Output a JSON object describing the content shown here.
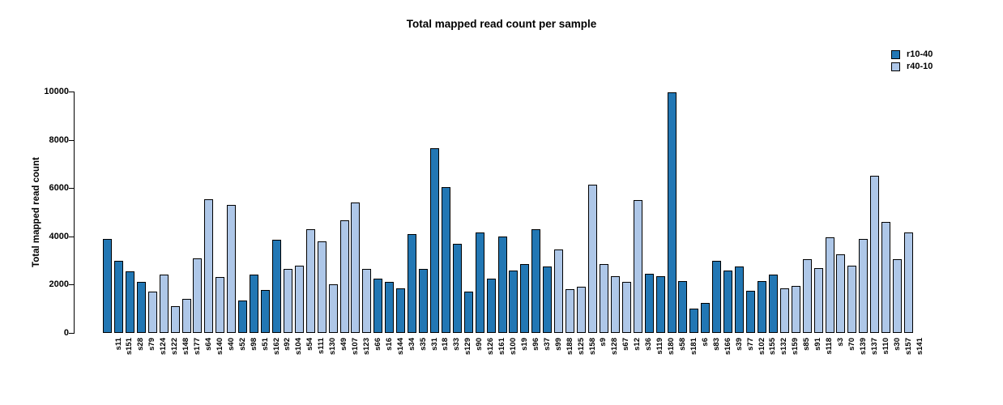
{
  "title": "Total mapped read count per sample",
  "legend": {
    "items": [
      {
        "label": "r10-40",
        "color": "#2277B4"
      },
      {
        "label": "r40-10",
        "color": "#AEC7E8"
      }
    ]
  },
  "chart_data": {
    "type": "bar",
    "title": "Total mapped read count per sample",
    "xlabel": "",
    "ylabel": "Total mapped read count",
    "ylim": [
      0,
      10000
    ],
    "yticks": [
      0,
      2000,
      4000,
      6000,
      8000,
      10000
    ],
    "grid": false,
    "legend_position": "top-right",
    "bar_border_color": "#000000",
    "series_colors": {
      "r10-40": "#2277B4",
      "r40-10": "#AEC7E8"
    },
    "samples": [
      {
        "label": "s11",
        "value": 3900,
        "series": "r10-40"
      },
      {
        "label": "s151",
        "value": 3000,
        "series": "r10-40"
      },
      {
        "label": "s28",
        "value": 2550,
        "series": "r10-40"
      },
      {
        "label": "s79",
        "value": 2100,
        "series": "r10-40"
      },
      {
        "label": "s124",
        "value": 1700,
        "series": "r40-10"
      },
      {
        "label": "s122",
        "value": 2400,
        "series": "r40-10"
      },
      {
        "label": "s148",
        "value": 1100,
        "series": "r40-10"
      },
      {
        "label": "s177",
        "value": 1400,
        "series": "r40-10"
      },
      {
        "label": "s64",
        "value": 3100,
        "series": "r40-10"
      },
      {
        "label": "s140",
        "value": 5550,
        "series": "r40-10"
      },
      {
        "label": "s40",
        "value": 2330,
        "series": "r40-10"
      },
      {
        "label": "s52",
        "value": 5300,
        "series": "r40-10"
      },
      {
        "label": "s98",
        "value": 1350,
        "series": "r10-40"
      },
      {
        "label": "s51",
        "value": 2430,
        "series": "r10-40"
      },
      {
        "label": "s162",
        "value": 1780,
        "series": "r10-40"
      },
      {
        "label": "s92",
        "value": 3850,
        "series": "r10-40"
      },
      {
        "label": "s104",
        "value": 2650,
        "series": "r40-10"
      },
      {
        "label": "s54",
        "value": 2800,
        "series": "r40-10"
      },
      {
        "label": "s111",
        "value": 4300,
        "series": "r40-10"
      },
      {
        "label": "s130",
        "value": 3800,
        "series": "r40-10"
      },
      {
        "label": "s49",
        "value": 2000,
        "series": "r40-10"
      },
      {
        "label": "s107",
        "value": 4650,
        "series": "r40-10"
      },
      {
        "label": "s123",
        "value": 5400,
        "series": "r40-10"
      },
      {
        "label": "s66",
        "value": 2650,
        "series": "r40-10"
      },
      {
        "label": "s16",
        "value": 2250,
        "series": "r10-40"
      },
      {
        "label": "s144",
        "value": 2100,
        "series": "r10-40"
      },
      {
        "label": "s34",
        "value": 1850,
        "series": "r10-40"
      },
      {
        "label": "s35",
        "value": 4100,
        "series": "r10-40"
      },
      {
        "label": "s31",
        "value": 2650,
        "series": "r10-40"
      },
      {
        "label": "s18",
        "value": 7650,
        "series": "r10-40"
      },
      {
        "label": "s33",
        "value": 6050,
        "series": "r10-40"
      },
      {
        "label": "s129",
        "value": 3700,
        "series": "r10-40"
      },
      {
        "label": "s90",
        "value": 1700,
        "series": "r10-40"
      },
      {
        "label": "s126",
        "value": 4150,
        "series": "r10-40"
      },
      {
        "label": "s161",
        "value": 2250,
        "series": "r10-40"
      },
      {
        "label": "s100",
        "value": 4000,
        "series": "r10-40"
      },
      {
        "label": "s19",
        "value": 2600,
        "series": "r10-40"
      },
      {
        "label": "s96",
        "value": 2850,
        "series": "r10-40"
      },
      {
        "label": "s37",
        "value": 4300,
        "series": "r10-40"
      },
      {
        "label": "s99",
        "value": 2750,
        "series": "r10-40"
      },
      {
        "label": "s188",
        "value": 3450,
        "series": "r40-10"
      },
      {
        "label": "s125",
        "value": 1800,
        "series": "r40-10"
      },
      {
        "label": "s158",
        "value": 1900,
        "series": "r40-10"
      },
      {
        "label": "s9",
        "value": 6150,
        "series": "r40-10"
      },
      {
        "label": "s128",
        "value": 2850,
        "series": "r40-10"
      },
      {
        "label": "s67",
        "value": 2350,
        "series": "r40-10"
      },
      {
        "label": "s12",
        "value": 2100,
        "series": "r40-10"
      },
      {
        "label": "s36",
        "value": 5500,
        "series": "r40-10"
      },
      {
        "label": "s119",
        "value": 2450,
        "series": "r10-40"
      },
      {
        "label": "s180",
        "value": 2350,
        "series": "r10-40"
      },
      {
        "label": "s58",
        "value": 9950,
        "series": "r10-40"
      },
      {
        "label": "s181",
        "value": 2150,
        "series": "r10-40"
      },
      {
        "label": "s6",
        "value": 1000,
        "series": "r10-40"
      },
      {
        "label": "s83",
        "value": 1250,
        "series": "r10-40"
      },
      {
        "label": "s166",
        "value": 3000,
        "series": "r10-40"
      },
      {
        "label": "s39",
        "value": 2600,
        "series": "r10-40"
      },
      {
        "label": "s77",
        "value": 2750,
        "series": "r10-40"
      },
      {
        "label": "s102",
        "value": 1750,
        "series": "r10-40"
      },
      {
        "label": "s155",
        "value": 2150,
        "series": "r10-40"
      },
      {
        "label": "s132",
        "value": 2400,
        "series": "r10-40"
      },
      {
        "label": "s159",
        "value": 1850,
        "series": "r40-10"
      },
      {
        "label": "s85",
        "value": 1950,
        "series": "r40-10"
      },
      {
        "label": "s91",
        "value": 3050,
        "series": "r40-10"
      },
      {
        "label": "s118",
        "value": 2700,
        "series": "r40-10"
      },
      {
        "label": "s3",
        "value": 3950,
        "series": "r40-10"
      },
      {
        "label": "s70",
        "value": 3250,
        "series": "r40-10"
      },
      {
        "label": "s139",
        "value": 2800,
        "series": "r40-10"
      },
      {
        "label": "s137",
        "value": 3900,
        "series": "r40-10"
      },
      {
        "label": "s110",
        "value": 6500,
        "series": "r40-10"
      },
      {
        "label": "s30",
        "value": 4600,
        "series": "r40-10"
      },
      {
        "label": "s157",
        "value": 3050,
        "series": "r40-10"
      },
      {
        "label": "s141",
        "value": 4150,
        "series": "r40-10"
      }
    ]
  }
}
